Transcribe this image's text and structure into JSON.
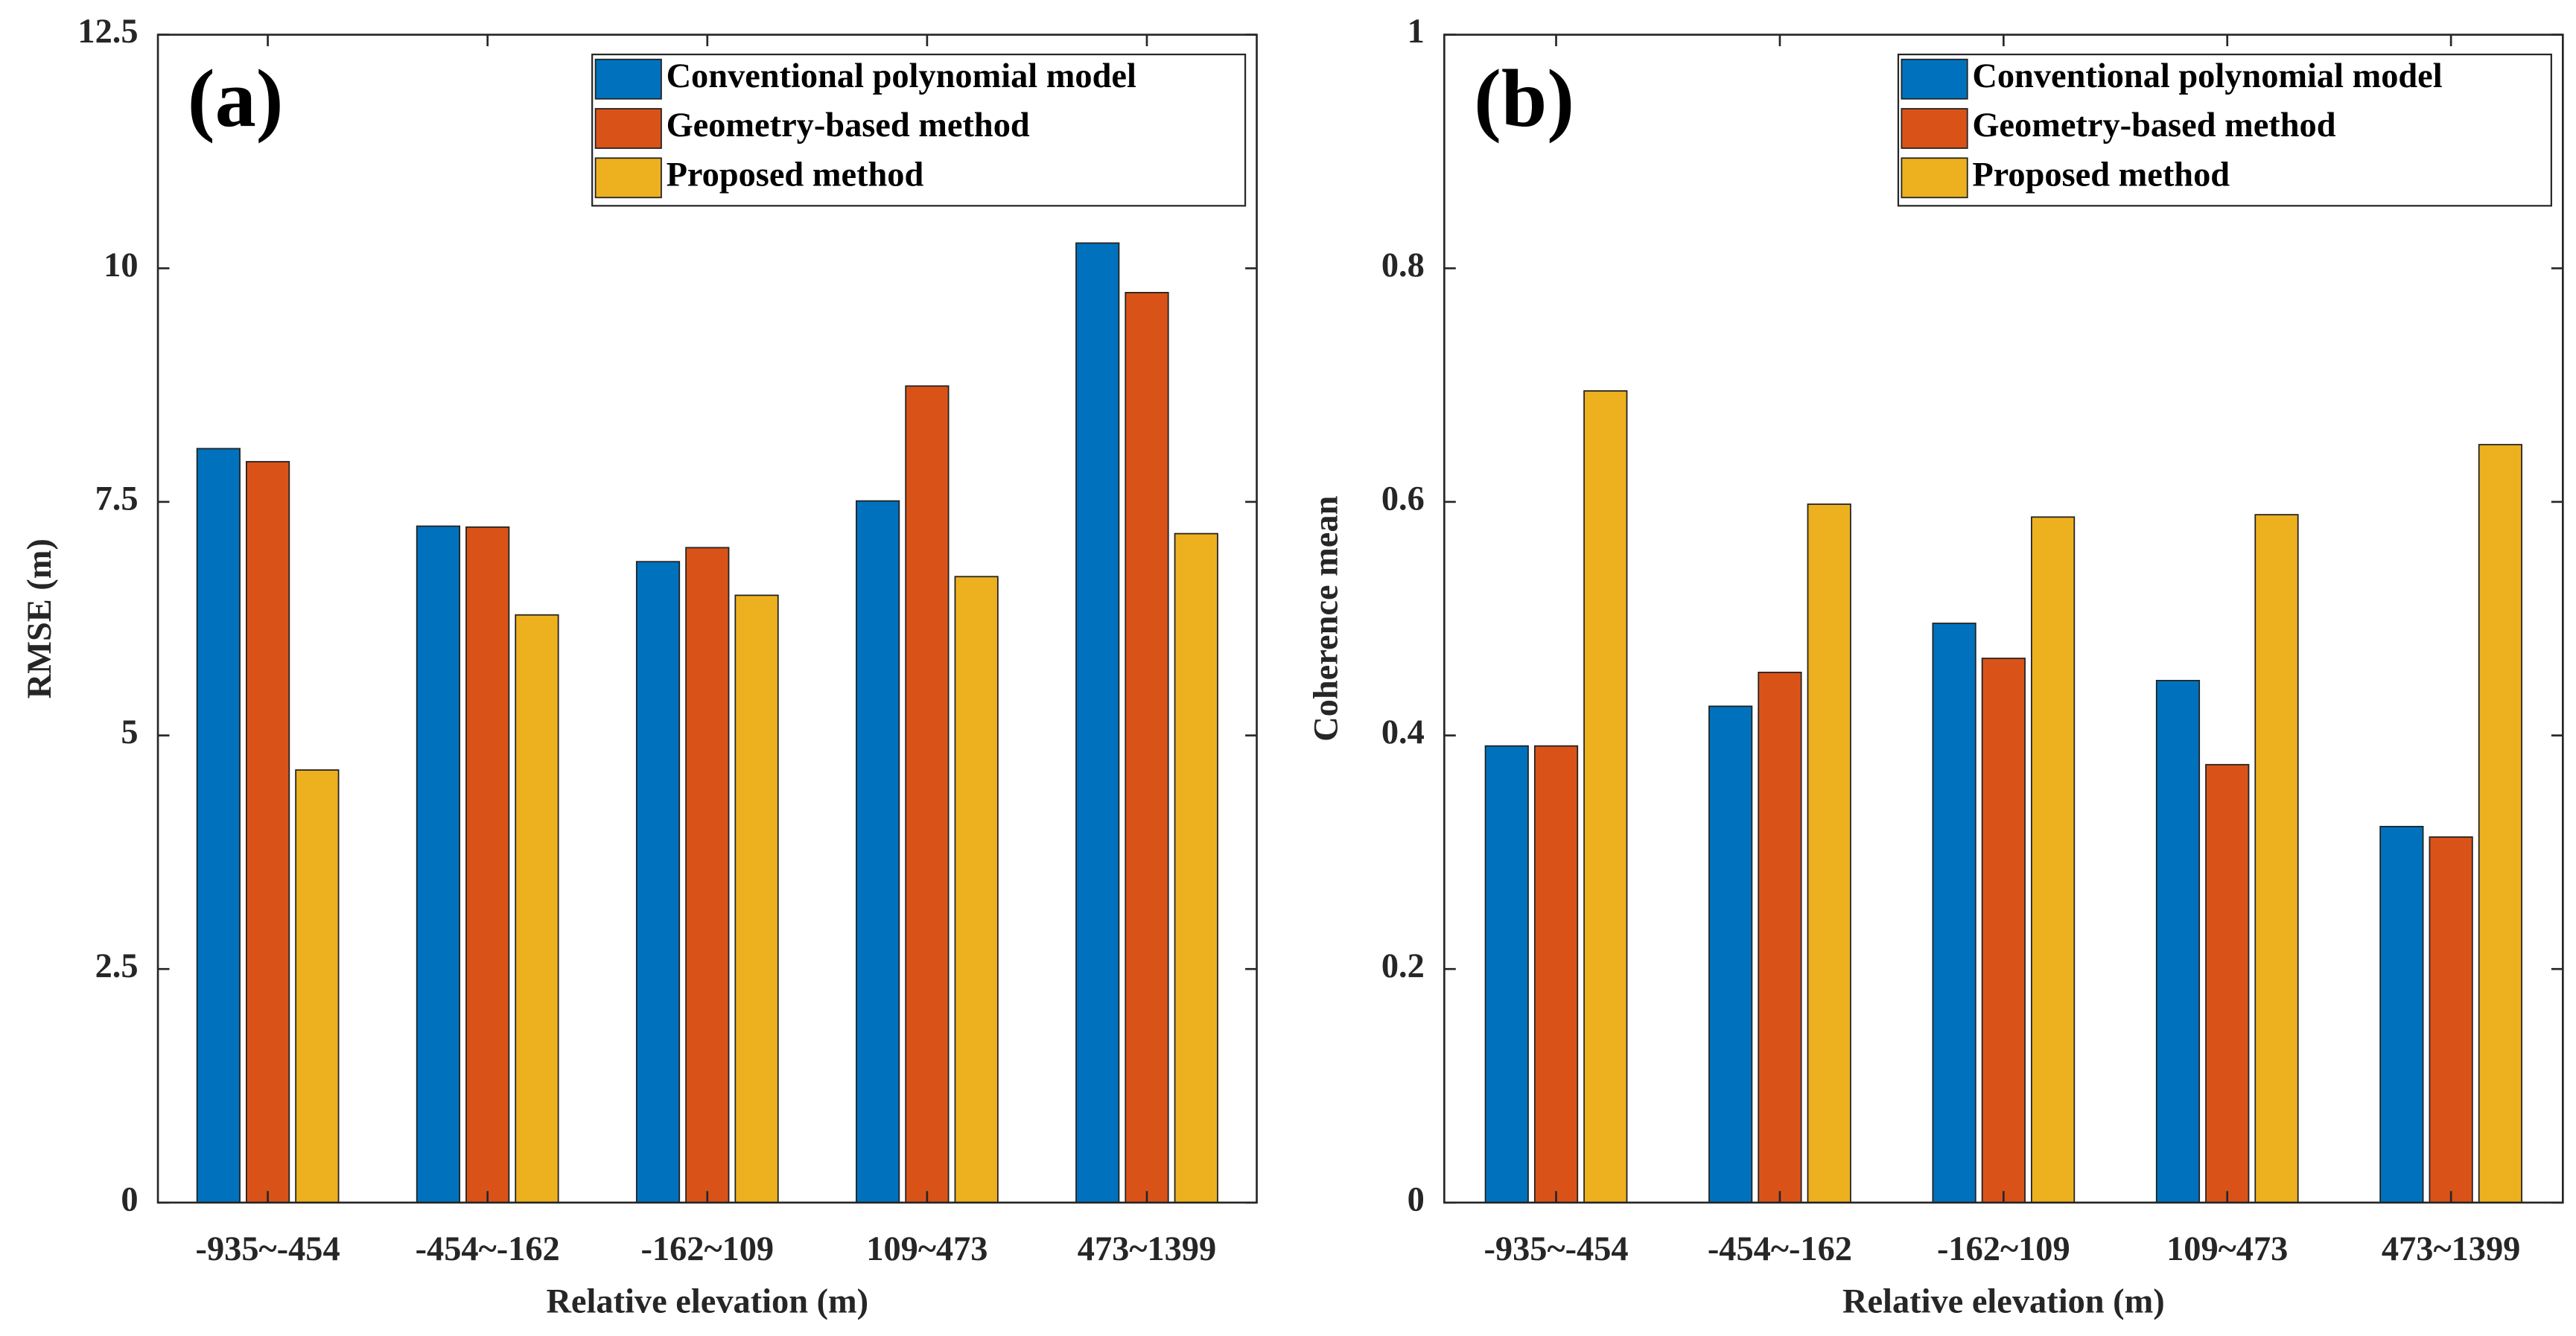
{
  "chart_data": [
    {
      "type": "bar",
      "label": "(a)",
      "xlabel": "Relative elevation (m)",
      "ylabel": "RMSE (m)",
      "categories": [
        "-935~-454",
        "-454~-162",
        "-162~109",
        "109~473",
        "473~1399"
      ],
      "series": [
        {
          "name": "Conventional polynomial model",
          "color": "#0072BD",
          "values": [
            8.07,
            7.24,
            6.86,
            7.51,
            10.27
          ]
        },
        {
          "name": "Geometry-based method",
          "color": "#D95319",
          "values": [
            7.93,
            7.23,
            7.01,
            8.74,
            9.74
          ]
        },
        {
          "name": "Proposed method",
          "color": "#EDB120",
          "values": [
            4.63,
            6.29,
            6.5,
            6.7,
            7.16
          ]
        }
      ],
      "ylim": [
        0,
        12.5
      ],
      "yticks": [
        0,
        2.5,
        5,
        7.5,
        10,
        12.5
      ],
      "grid": false,
      "legend": "upper right"
    },
    {
      "type": "bar",
      "label": "(b)",
      "xlabel": "Relative elevation (m)",
      "ylabel": "Coherence mean",
      "categories": [
        "-935~-454",
        "-454~-162",
        "-162~109",
        "109~473",
        "473~1399"
      ],
      "series": [
        {
          "name": "Conventional polynomial model",
          "color": "#0072BD",
          "values": [
            0.391,
            0.425,
            0.496,
            0.447,
            0.322
          ]
        },
        {
          "name": "Geometry-based method",
          "color": "#D95319",
          "values": [
            0.391,
            0.454,
            0.466,
            0.375,
            0.313
          ]
        },
        {
          "name": "Proposed method",
          "color": "#EDB120",
          "values": [
            0.695,
            0.598,
            0.587,
            0.589,
            0.649
          ]
        }
      ],
      "ylim": [
        0,
        1
      ],
      "yticks": [
        0,
        0.2,
        0.4,
        0.6,
        0.8,
        1
      ],
      "grid": false,
      "legend": "upper right"
    }
  ]
}
